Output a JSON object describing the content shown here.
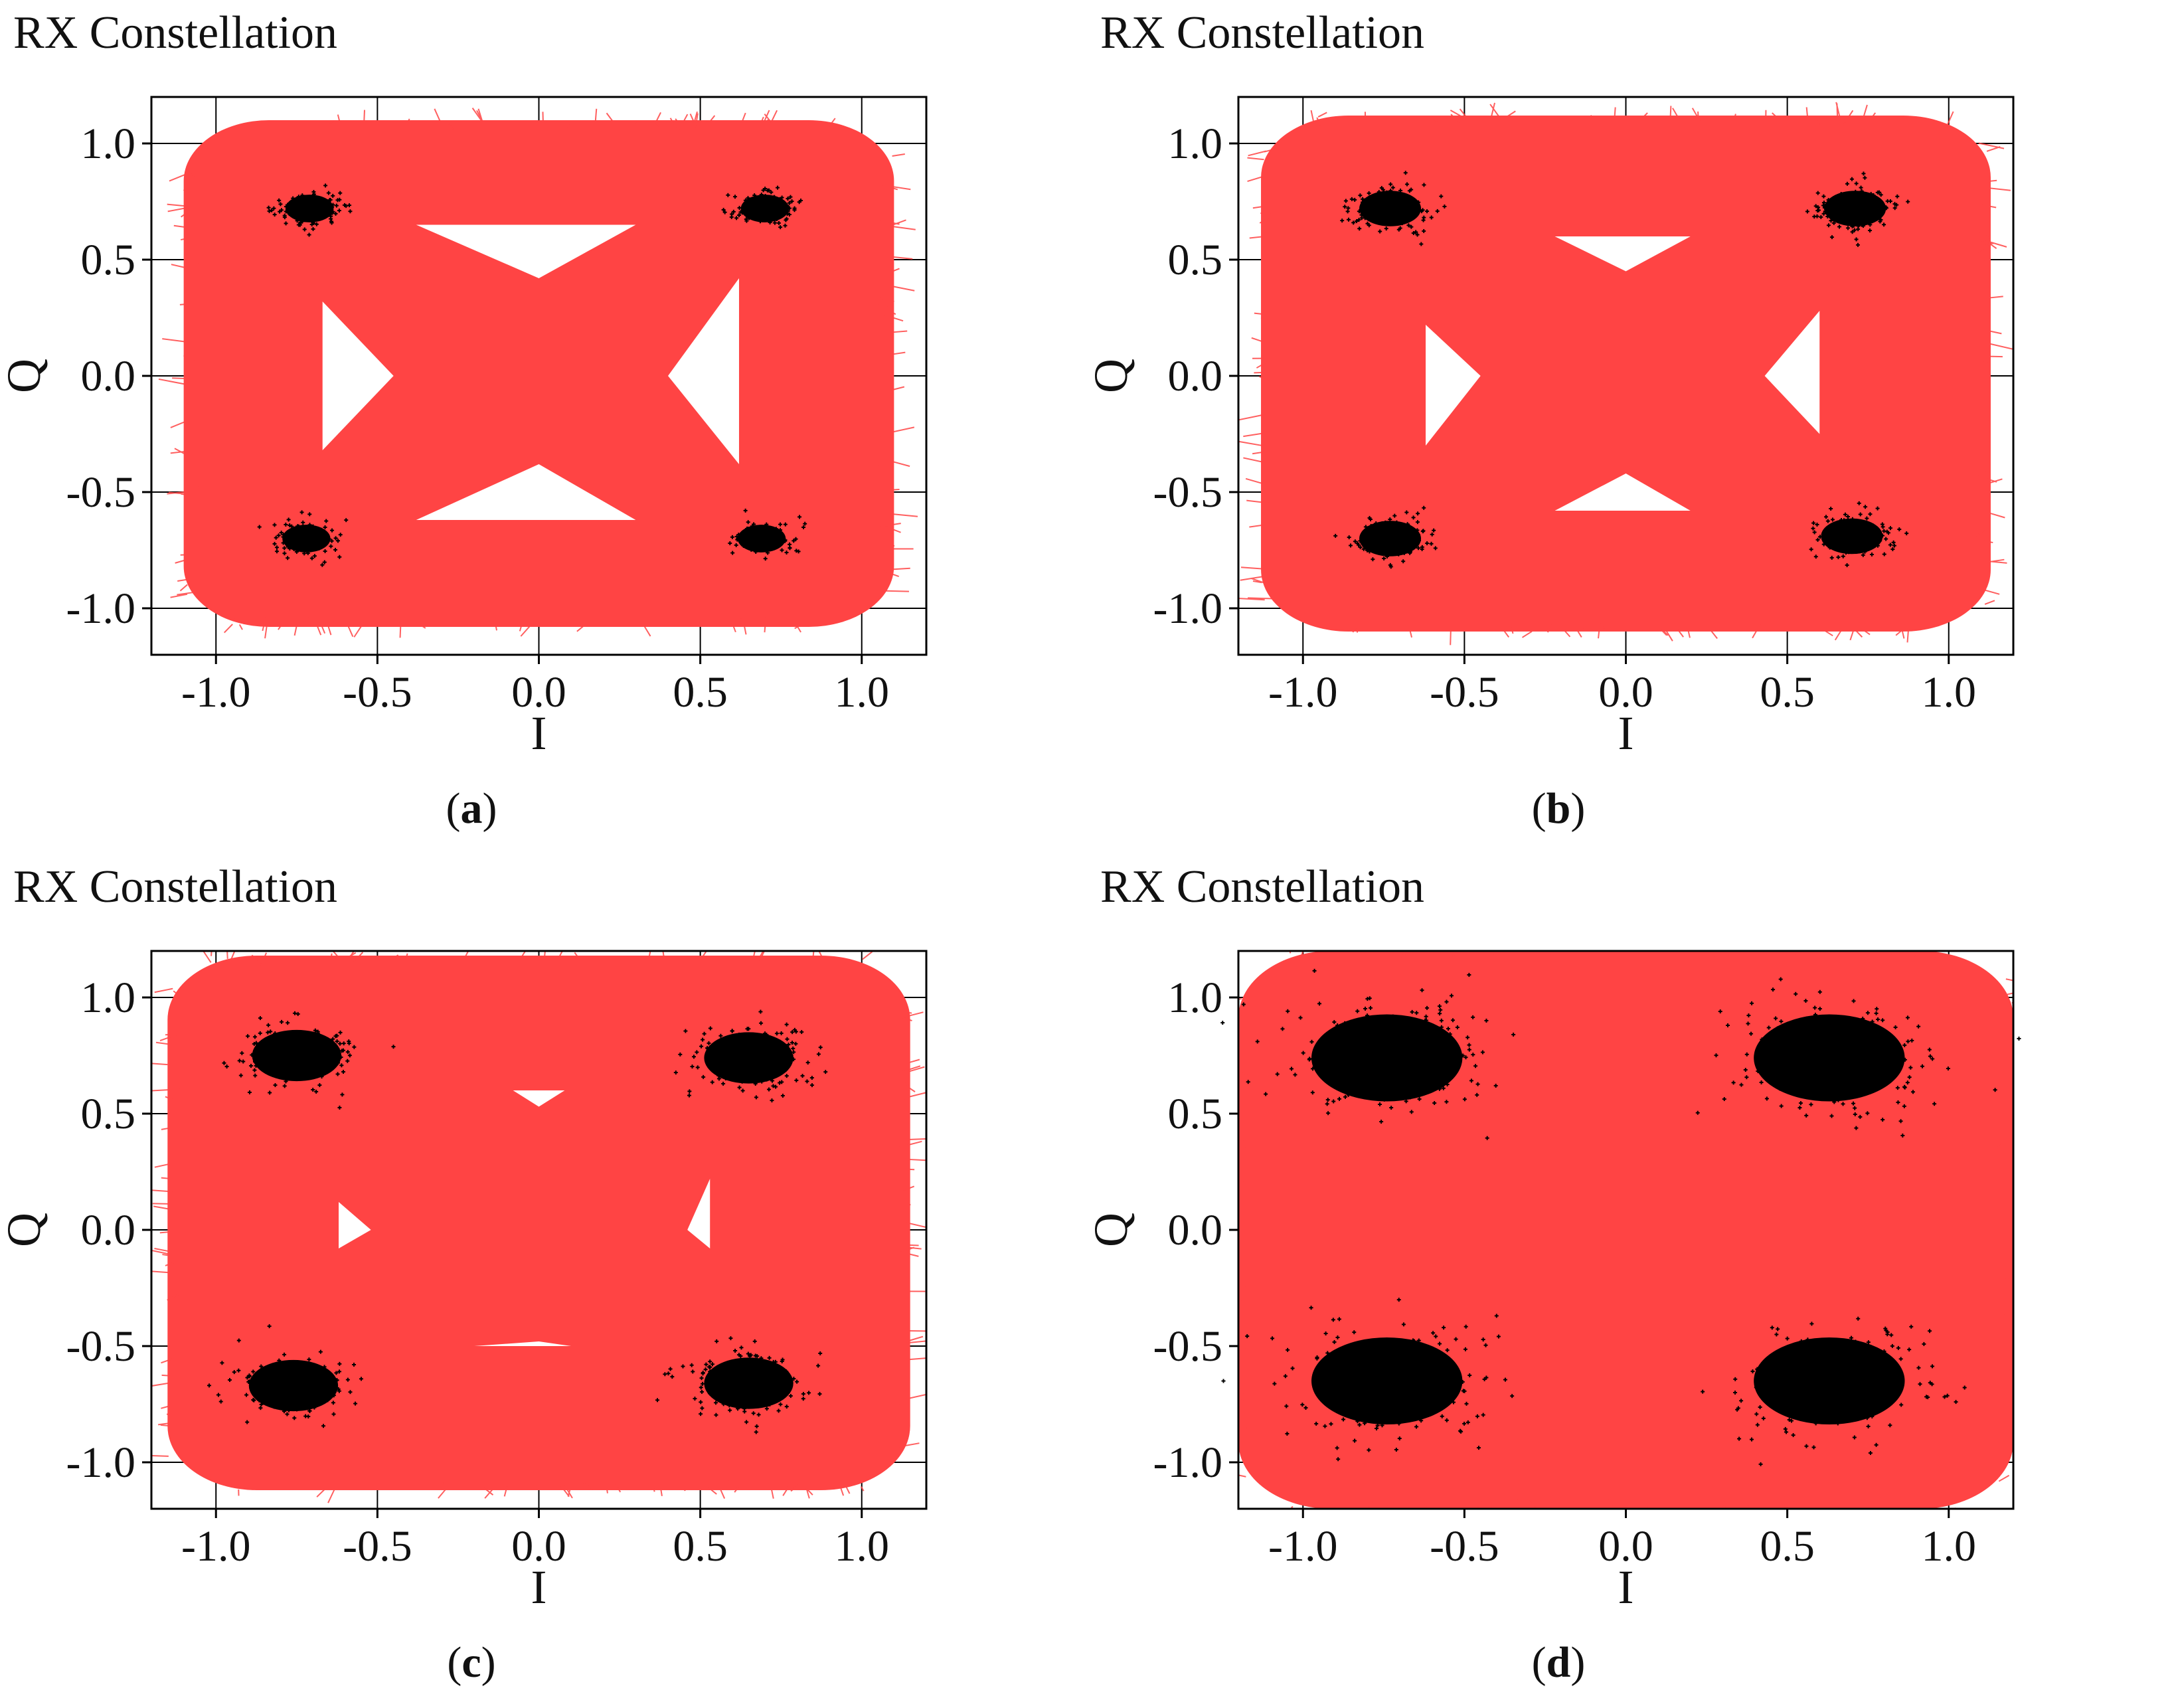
{
  "figure": {
    "colors": {
      "trace": "#ff4444",
      "symbols": "#000000",
      "grid": "#000000",
      "background": "#ffffff"
    }
  },
  "chart_data": [
    {
      "panel": "a",
      "type": "scatter",
      "title": "RX Constellation",
      "caption_label": "a",
      "xlabel": "I",
      "ylabel": "Q",
      "xlim": [
        -1.2,
        1.2
      ],
      "ylim": [
        -1.2,
        1.2
      ],
      "xticks": [
        -1.0,
        -0.5,
        0.0,
        0.5,
        1.0
      ],
      "yticks": [
        1.0,
        0.5,
        0.0,
        -0.5,
        -1.0
      ],
      "xtick_labels": [
        "-1.0",
        "-0.5",
        "0.0",
        "0.5",
        "1.0"
      ],
      "ytick_labels": [
        "1.0",
        "0.5",
        "0.0",
        "-0.5",
        "-1.0"
      ],
      "grid": true,
      "trace_extent": {
        "i": [
          -1.1,
          1.1
        ],
        "q": [
          -1.08,
          1.1
        ]
      },
      "eye_openings": [
        {
          "label": "top",
          "points": [
            [
              -0.38,
              0.65
            ],
            [
              0.3,
              0.65
            ],
            [
              0.0,
              0.42
            ]
          ]
        },
        {
          "label": "bottom",
          "points": [
            [
              -0.38,
              -0.62
            ],
            [
              0.3,
              -0.62
            ],
            [
              0.0,
              -0.38
            ]
          ]
        },
        {
          "label": "left",
          "points": [
            [
              -0.67,
              0.32
            ],
            [
              -0.67,
              -0.32
            ],
            [
              -0.45,
              0.0
            ]
          ]
        },
        {
          "label": "right",
          "points": [
            [
              0.62,
              0.42
            ],
            [
              0.62,
              -0.38
            ],
            [
              0.4,
              0.0
            ]
          ]
        }
      ],
      "clusters": [
        {
          "i": -0.71,
          "q": 0.72,
          "spread": 0.035
        },
        {
          "i": 0.7,
          "q": 0.72,
          "spread": 0.035
        },
        {
          "i": -0.72,
          "q": -0.7,
          "spread": 0.035
        },
        {
          "i": 0.69,
          "q": -0.7,
          "spread": 0.035
        }
      ]
    },
    {
      "panel": "b",
      "type": "scatter",
      "title": "RX Constellation",
      "caption_label": "b",
      "xlabel": "I",
      "ylabel": "Q",
      "xlim": [
        -1.2,
        1.2
      ],
      "ylim": [
        -1.2,
        1.2
      ],
      "xticks": [
        -1.0,
        -0.5,
        0.0,
        0.5,
        1.0
      ],
      "yticks": [
        1.0,
        0.5,
        0.0,
        -0.5,
        -1.0
      ],
      "xtick_labels": [
        "-1.0",
        "-0.5",
        "0.0",
        "0.5",
        "1.0"
      ],
      "ytick_labels": [
        "1.0",
        "0.5",
        "0.0",
        "-0.5",
        "-1.0"
      ],
      "grid": true,
      "trace_extent": {
        "i": [
          -1.13,
          1.13
        ],
        "q": [
          -1.1,
          1.12
        ]
      },
      "eye_openings": [
        {
          "label": "top",
          "points": [
            [
              -0.22,
              0.6
            ],
            [
              0.2,
              0.6
            ],
            [
              0.0,
              0.45
            ]
          ]
        },
        {
          "label": "bottom",
          "points": [
            [
              -0.22,
              -0.58
            ],
            [
              0.2,
              -0.58
            ],
            [
              0.0,
              -0.42
            ]
          ]
        },
        {
          "label": "left",
          "points": [
            [
              -0.62,
              0.22
            ],
            [
              -0.62,
              -0.3
            ],
            [
              -0.45,
              0.0
            ]
          ]
        },
        {
          "label": "right",
          "points": [
            [
              0.6,
              0.28
            ],
            [
              0.6,
              -0.25
            ],
            [
              0.43,
              0.0
            ]
          ]
        }
      ],
      "clusters": [
        {
          "i": -0.73,
          "q": 0.72,
          "spread": 0.045
        },
        {
          "i": 0.71,
          "q": 0.72,
          "spread": 0.045
        },
        {
          "i": -0.73,
          "q": -0.7,
          "spread": 0.045
        },
        {
          "i": 0.7,
          "q": -0.69,
          "spread": 0.045
        }
      ]
    },
    {
      "panel": "c",
      "type": "scatter",
      "title": "RX Constellation",
      "caption_label": "c",
      "xlabel": "I",
      "ylabel": "Q",
      "xlim": [
        -1.2,
        1.2
      ],
      "ylim": [
        -1.2,
        1.2
      ],
      "xticks": [
        -1.0,
        -0.5,
        0.0,
        0.5,
        1.0
      ],
      "yticks": [
        1.0,
        0.5,
        0.0,
        -0.5,
        -1.0
      ],
      "xtick_labels": [
        "-1.0",
        "-0.5",
        "0.0",
        "0.5",
        "1.0"
      ],
      "ytick_labels": [
        "1.0",
        "0.5",
        "0.0",
        "-0.5",
        "-1.0"
      ],
      "grid": true,
      "trace_extent": {
        "i": [
          -1.15,
          1.15
        ],
        "q": [
          -1.12,
          1.18
        ]
      },
      "eye_openings": [
        {
          "label": "top",
          "points": [
            [
              -0.08,
              0.6
            ],
            [
              0.08,
              0.6
            ],
            [
              0.0,
              0.53
            ]
          ]
        },
        {
          "label": "left",
          "points": [
            [
              -0.62,
              0.12
            ],
            [
              -0.62,
              -0.08
            ],
            [
              -0.52,
              0.0
            ]
          ]
        },
        {
          "label": "right",
          "points": [
            [
              0.53,
              0.22
            ],
            [
              0.53,
              -0.08
            ],
            [
              0.46,
              0.0
            ]
          ]
        },
        {
          "label": "bottom",
          "points": [
            [
              -0.2,
              -0.5
            ],
            [
              0.1,
              -0.5
            ],
            [
              0.0,
              -0.48
            ]
          ]
        }
      ],
      "clusters": [
        {
          "i": -0.75,
          "q": 0.75,
          "spread": 0.065
        },
        {
          "i": 0.65,
          "q": 0.74,
          "spread": 0.065
        },
        {
          "i": -0.76,
          "q": -0.67,
          "spread": 0.065
        },
        {
          "i": 0.65,
          "q": -0.66,
          "spread": 0.065
        }
      ]
    },
    {
      "panel": "d",
      "type": "scatter",
      "title": "RX Constellation",
      "caption_label": "d",
      "xlabel": "I",
      "ylabel": "Q",
      "xlim": [
        -1.2,
        1.2
      ],
      "ylim": [
        -1.2,
        1.2
      ],
      "xticks": [
        -1.0,
        -0.5,
        0.0,
        0.5,
        1.0
      ],
      "yticks": [
        1.0,
        0.5,
        0.0,
        -0.5,
        -1.0
      ],
      "xtick_labels": [
        "-1.0",
        "-0.5",
        "0.0",
        "0.5",
        "1.0"
      ],
      "ytick_labels": [
        "1.0",
        "0.5",
        "0.0",
        "-0.5",
        "-1.0"
      ],
      "grid": true,
      "trace_extent": {
        "i": [
          -1.2,
          1.2
        ],
        "q": [
          -1.2,
          1.2
        ]
      },
      "eye_openings": [],
      "clusters": [
        {
          "i": -0.74,
          "q": 0.74,
          "spread": 0.11
        },
        {
          "i": 0.63,
          "q": 0.74,
          "spread": 0.11
        },
        {
          "i": -0.74,
          "q": -0.65,
          "spread": 0.11
        },
        {
          "i": 0.63,
          "q": -0.65,
          "spread": 0.11
        }
      ]
    }
  ]
}
